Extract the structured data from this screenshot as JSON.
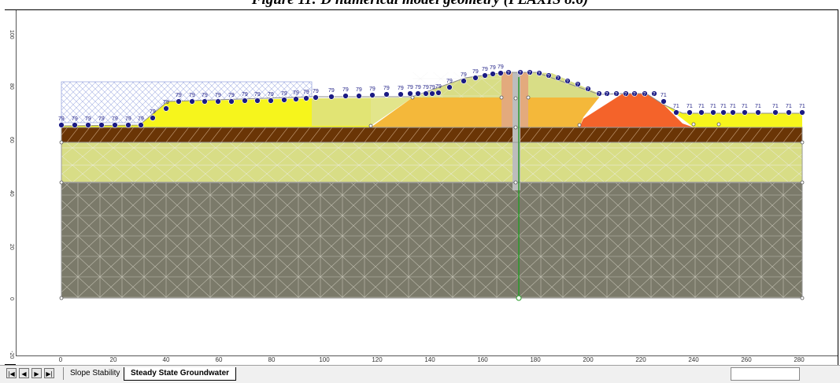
{
  "caption": "Figure 11: D numerical model geometry (PLAXIS 8.6)",
  "x_axis": {
    "ticks": [
      "0",
      "20",
      "40",
      "60",
      "80",
      "100",
      "120",
      "140",
      "160",
      "180",
      "200",
      "220",
      "240",
      "260",
      "280"
    ]
  },
  "y_axis": {
    "ticks": [
      "100",
      "80",
      "60",
      "40",
      "20",
      "0",
      "-20"
    ]
  },
  "tabs": [
    {
      "label": "Slope Stability",
      "active": false
    },
    {
      "label": "Steady State Groundwater",
      "active": true
    }
  ],
  "nav_buttons": [
    "first",
    "previous",
    "next",
    "last"
  ],
  "head_labels_left": "79",
  "head_labels_right": "71",
  "head_unknown_marker": "?",
  "colors": {
    "gray_foundation": "#7b7a6a",
    "light_olive": "#d8dd86",
    "brown_layer": "#6a3506",
    "yellow_fill": "#f6f51c",
    "orange_fill": "#f4b83a",
    "red_orange": "#f4632a",
    "core": "#e3aa7d",
    "water_marker": "#1b1b84",
    "profile_line": "#2a9a2a"
  }
}
